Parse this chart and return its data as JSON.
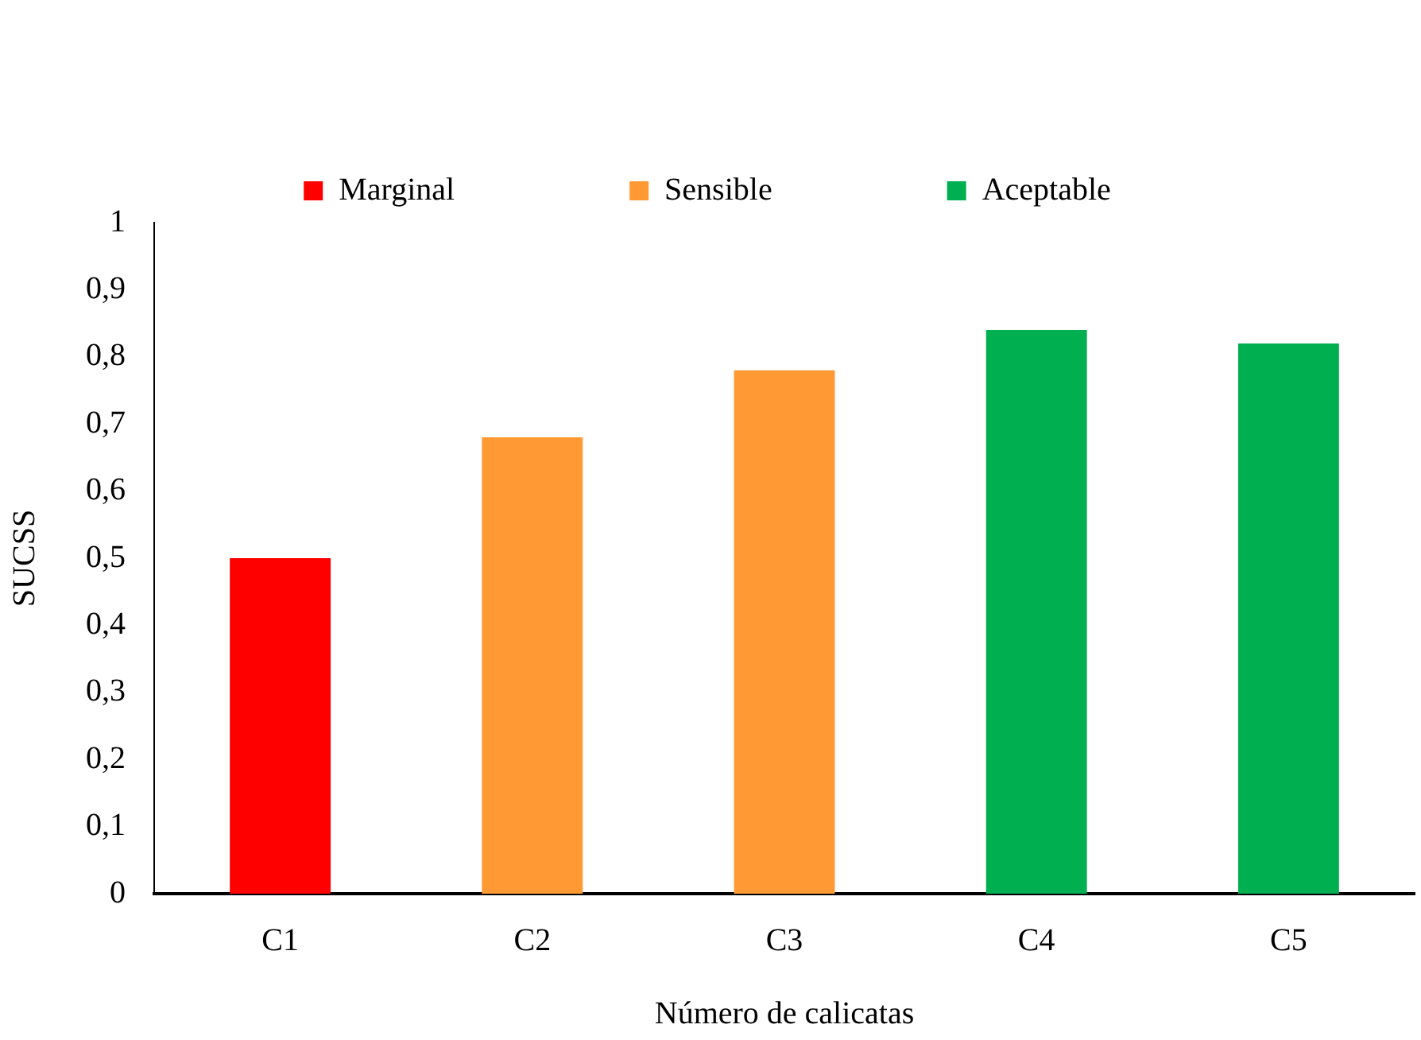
{
  "chart_data": {
    "type": "bar",
    "xlabel": "Número de calicatas",
    "ylabel": "SUCSS",
    "categories": [
      "C1",
      "C2",
      "C3",
      "C4",
      "C5"
    ],
    "series": [
      {
        "name": "Marginal",
        "color": "#ff0000",
        "values": [
          0.5,
          null,
          null,
          null,
          null
        ]
      },
      {
        "name": "Sensible",
        "color": "#ff9933",
        "values": [
          null,
          0.68,
          0.78,
          null,
          null
        ]
      },
      {
        "name": "Aceptable",
        "color": "#00b050",
        "values": [
          null,
          null,
          null,
          0.84,
          0.82
        ]
      }
    ],
    "ylim": [
      0,
      1
    ],
    "yticks": [
      0,
      {
        "value": 0.1,
        "label": "0,1"
      },
      {
        "value": 0.2,
        "label": "0,2"
      },
      {
        "value": 0.3,
        "label": "0,3"
      },
      {
        "value": 0.4,
        "label": "0,4"
      },
      {
        "value": 0.5,
        "label": "0,5"
      },
      {
        "value": 0.6,
        "label": "0,6"
      },
      {
        "value": 0.7,
        "label": "0,7"
      },
      {
        "value": 0.8,
        "label": "0,8"
      },
      {
        "value": 0.9,
        "label": "0,9"
      },
      1
    ],
    "grid": false,
    "legend": "top"
  }
}
